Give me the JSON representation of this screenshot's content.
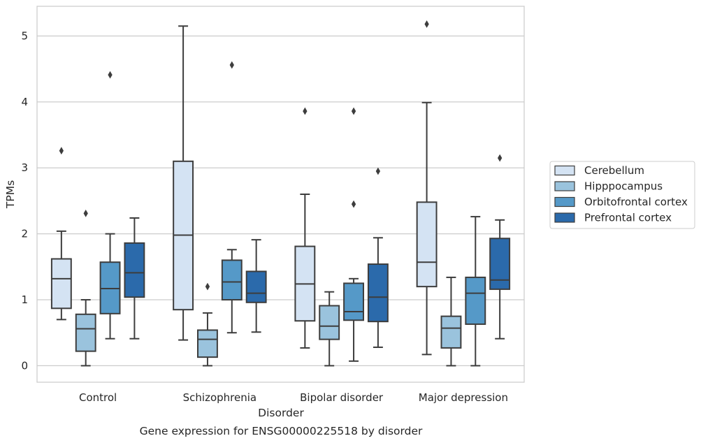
{
  "chart_data": {
    "type": "box",
    "caption": "Gene expression for ENSG00000225518 by disorder",
    "xlabel": "Disorder",
    "ylabel": "TPMs",
    "ylim": [
      -0.25,
      5.45
    ],
    "yticks": [
      0,
      1,
      2,
      3,
      4,
      5
    ],
    "grid": "horizontal",
    "legend_position": "right",
    "categories": [
      "Control",
      "Schizophrenia",
      "Bipolar disorder",
      "Major depression"
    ],
    "series": [
      {
        "name": "Cerebellum",
        "color": "#d4e3f3",
        "boxes": [
          {
            "whisker_low": 0.7,
            "q1": 0.87,
            "median": 1.32,
            "q3": 1.62,
            "whisker_high": 2.04,
            "outliers": [
              3.26
            ]
          },
          {
            "whisker_low": 0.39,
            "q1": 0.85,
            "median": 1.98,
            "q3": 3.1,
            "whisker_high": 5.15,
            "outliers": []
          },
          {
            "whisker_low": 0.27,
            "q1": 0.68,
            "median": 1.24,
            "q3": 1.81,
            "whisker_high": 2.6,
            "outliers": [
              3.86
            ]
          },
          {
            "whisker_low": 0.17,
            "q1": 1.2,
            "median": 1.57,
            "q3": 2.48,
            "whisker_high": 3.99,
            "outliers": [
              5.18
            ]
          }
        ]
      },
      {
        "name": "Hipppocampus",
        "color": "#9ac3dd",
        "boxes": [
          {
            "whisker_low": 0.0,
            "q1": 0.22,
            "median": 0.56,
            "q3": 0.78,
            "whisker_high": 1.0,
            "outliers": [
              2.31
            ]
          },
          {
            "whisker_low": 0.0,
            "q1": 0.13,
            "median": 0.4,
            "q3": 0.54,
            "whisker_high": 0.8,
            "outliers": [
              1.2
            ]
          },
          {
            "whisker_low": 0.0,
            "q1": 0.4,
            "median": 0.6,
            "q3": 0.91,
            "whisker_high": 1.12,
            "outliers": []
          },
          {
            "whisker_low": 0.0,
            "q1": 0.27,
            "median": 0.57,
            "q3": 0.75,
            "whisker_high": 1.34,
            "outliers": []
          }
        ]
      },
      {
        "name": "Orbitofrontal cortex",
        "color": "#5599c8",
        "boxes": [
          {
            "whisker_low": 0.41,
            "q1": 0.79,
            "median": 1.17,
            "q3": 1.57,
            "whisker_high": 2.0,
            "outliers": [
              4.41
            ]
          },
          {
            "whisker_low": 0.5,
            "q1": 1.0,
            "median": 1.27,
            "q3": 1.6,
            "whisker_high": 1.76,
            "outliers": [
              4.56
            ]
          },
          {
            "whisker_low": 0.07,
            "q1": 0.69,
            "median": 0.82,
            "q3": 1.25,
            "whisker_high": 1.32,
            "outliers": [
              2.45,
              3.86
            ]
          },
          {
            "whisker_low": 0.0,
            "q1": 0.63,
            "median": 1.1,
            "q3": 1.34,
            "whisker_high": 2.26,
            "outliers": []
          }
        ]
      },
      {
        "name": "Prefrontal cortex",
        "color": "#2b6aab",
        "boxes": [
          {
            "whisker_low": 0.41,
            "q1": 1.04,
            "median": 1.41,
            "q3": 1.86,
            "whisker_high": 2.24,
            "outliers": []
          },
          {
            "whisker_low": 0.51,
            "q1": 0.96,
            "median": 1.1,
            "q3": 1.43,
            "whisker_high": 1.91,
            "outliers": []
          },
          {
            "whisker_low": 0.28,
            "q1": 0.67,
            "median": 1.04,
            "q3": 1.54,
            "whisker_high": 1.94,
            "outliers": [
              2.95
            ]
          },
          {
            "whisker_low": 0.41,
            "q1": 1.16,
            "median": 1.3,
            "q3": 1.93,
            "whisker_high": 2.21,
            "outliers": [
              3.15
            ]
          }
        ]
      }
    ]
  }
}
